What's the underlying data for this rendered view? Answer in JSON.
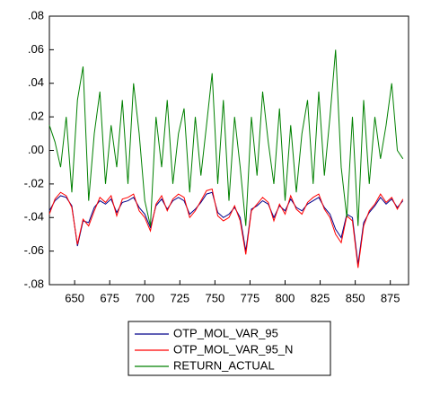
{
  "chart_data": {
    "type": "line",
    "x": [
      632,
      636,
      640,
      644,
      648,
      652,
      656,
      660,
      664,
      668,
      672,
      676,
      680,
      684,
      688,
      692,
      696,
      700,
      704,
      708,
      712,
      716,
      720,
      724,
      728,
      732,
      736,
      740,
      744,
      748,
      752,
      756,
      760,
      764,
      768,
      772,
      776,
      780,
      784,
      788,
      792,
      796,
      800,
      804,
      808,
      812,
      816,
      820,
      824,
      828,
      832,
      836,
      840,
      844,
      848,
      852,
      856,
      860,
      864,
      868,
      872,
      876,
      880,
      884
    ],
    "series": [
      {
        "name": "OTP_MOL_VAR_95",
        "color": "#00008b",
        "values": [
          -0.036,
          -0.03,
          -0.027,
          -0.028,
          -0.033,
          -0.057,
          -0.042,
          -0.043,
          -0.034,
          -0.03,
          -0.032,
          -0.029,
          -0.037,
          -0.031,
          -0.03,
          -0.028,
          -0.034,
          -0.038,
          -0.046,
          -0.033,
          -0.029,
          -0.035,
          -0.03,
          -0.028,
          -0.03,
          -0.038,
          -0.035,
          -0.031,
          -0.026,
          -0.025,
          -0.037,
          -0.04,
          -0.038,
          -0.034,
          -0.04,
          -0.06,
          -0.035,
          -0.033,
          -0.03,
          -0.032,
          -0.04,
          -0.033,
          -0.036,
          -0.029,
          -0.034,
          -0.036,
          -0.032,
          -0.03,
          -0.028,
          -0.034,
          -0.038,
          -0.047,
          -0.052,
          -0.038,
          -0.04,
          -0.068,
          -0.043,
          -0.037,
          -0.033,
          -0.028,
          -0.032,
          -0.029,
          -0.034,
          -0.03
        ]
      },
      {
        "name": "OTP_MOL_VAR_95_N",
        "color": "#ff0000",
        "values": [
          -0.038,
          -0.029,
          -0.025,
          -0.027,
          -0.034,
          -0.056,
          -0.041,
          -0.045,
          -0.036,
          -0.028,
          -0.031,
          -0.027,
          -0.039,
          -0.029,
          -0.028,
          -0.026,
          -0.036,
          -0.04,
          -0.048,
          -0.032,
          -0.027,
          -0.036,
          -0.029,
          -0.026,
          -0.028,
          -0.04,
          -0.036,
          -0.03,
          -0.024,
          -0.023,
          -0.039,
          -0.042,
          -0.04,
          -0.033,
          -0.042,
          -0.062,
          -0.036,
          -0.032,
          -0.028,
          -0.031,
          -0.042,
          -0.032,
          -0.038,
          -0.027,
          -0.035,
          -0.038,
          -0.031,
          -0.028,
          -0.026,
          -0.035,
          -0.04,
          -0.05,
          -0.055,
          -0.039,
          -0.042,
          -0.07,
          -0.045,
          -0.036,
          -0.032,
          -0.026,
          -0.031,
          -0.028,
          -0.035,
          -0.029
        ]
      },
      {
        "name": "RETURN_ACTUAL",
        "color": "#008000",
        "values": [
          0.015,
          0.005,
          -0.01,
          0.02,
          -0.025,
          0.03,
          0.05,
          -0.03,
          0.01,
          0.035,
          -0.02,
          0.015,
          -0.01,
          0.03,
          -0.02,
          0.04,
          0.01,
          -0.03,
          -0.045,
          0.02,
          -0.01,
          0.03,
          -0.02,
          0.01,
          0.025,
          -0.025,
          0.02,
          -0.015,
          0.015,
          0.046,
          -0.02,
          0.03,
          -0.03,
          0.02,
          -0.01,
          -0.045,
          0.02,
          -0.015,
          0.035,
          0.005,
          -0.02,
          0.025,
          -0.03,
          0.015,
          -0.025,
          0.01,
          0.03,
          -0.02,
          0.035,
          -0.015,
          0.02,
          0.06,
          -0.01,
          -0.04,
          0.02,
          -0.045,
          0.03,
          -0.02,
          0.02,
          -0.005,
          0.015,
          0.04,
          0.0,
          -0.005
        ]
      }
    ],
    "xlim": [
      632,
      888
    ],
    "xticks": [
      650,
      675,
      700,
      725,
      750,
      775,
      800,
      825,
      850,
      875
    ],
    "ylim": [
      -0.08,
      0.08
    ],
    "yticks": [
      {
        "value": -0.08,
        "label": "-.08"
      },
      {
        "value": -0.06,
        "label": "-.06"
      },
      {
        "value": -0.04,
        "label": "-.04"
      },
      {
        "value": -0.02,
        "label": "-.02"
      },
      {
        "value": 0,
        "label": ".00"
      },
      {
        "value": 0.02,
        "label": ".02"
      },
      {
        "value": 0.04,
        "label": ".04"
      },
      {
        "value": 0.06,
        "label": ".06"
      },
      {
        "value": 0.08,
        "label": ".08"
      }
    ],
    "grid": false,
    "legend": "bottom"
  }
}
